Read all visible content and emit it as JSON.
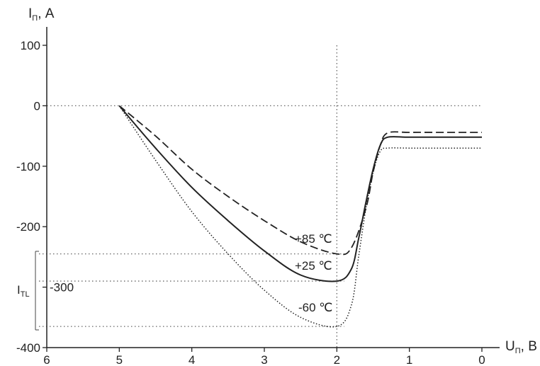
{
  "chart_data": {
    "type": "line",
    "ylabel_main": "I",
    "ylabel_sub": "П",
    "ylabel_unit": ", A",
    "xlabel_main": "U",
    "xlabel_sub": "П",
    "xlabel_unit": ", В",
    "xlim": [
      6,
      0
    ],
    "ylim": [
      -400,
      100
    ],
    "x_ticks": [
      "6",
      "5",
      "4",
      "3",
      "2",
      "1",
      "0"
    ],
    "y_ticks": [
      "100",
      "0",
      "-100",
      "-200",
      "-300",
      "-400"
    ],
    "x_tick_values": [
      6,
      5,
      4,
      3,
      2,
      1,
      0
    ],
    "y_tick_values": [
      100,
      0,
      -100,
      -200,
      -300,
      -400
    ],
    "series": [
      {
        "name": "+85 ℃",
        "style": "dashed",
        "x": [
          5.0,
          4.5,
          4.0,
          3.5,
          3.0,
          2.5,
          2.0,
          1.8,
          1.6,
          1.5,
          1.4,
          1.3,
          1.0,
          0.5,
          0.0
        ],
        "y": [
          0,
          -50,
          -105,
          -150,
          -190,
          -225,
          -245,
          -235,
          -170,
          -110,
          -65,
          -45,
          -44,
          -44,
          -44
        ]
      },
      {
        "name": "+25 ℃",
        "style": "solid",
        "x": [
          5.0,
          4.5,
          4.0,
          3.5,
          3.0,
          2.5,
          2.0,
          1.8,
          1.7,
          1.6,
          1.5,
          1.4,
          1.3,
          1.0,
          0.5,
          0.0
        ],
        "y": [
          0,
          -70,
          -135,
          -190,
          -240,
          -280,
          -290,
          -270,
          -220,
          -160,
          -105,
          -65,
          -52,
          -52,
          -52,
          -52
        ]
      },
      {
        "name": "-60 ℃",
        "style": "dotted",
        "x": [
          5.0,
          4.5,
          4.0,
          3.5,
          3.0,
          2.5,
          2.0,
          1.8,
          1.7,
          1.6,
          1.5,
          1.4,
          1.3,
          1.0,
          0.5,
          0.0
        ],
        "y": [
          0,
          -90,
          -175,
          -245,
          -305,
          -350,
          -365,
          -330,
          -250,
          -170,
          -110,
          -75,
          -70,
          -70,
          -70,
          -70
        ]
      }
    ],
    "reference_lines": {
      "vertical_x": 2,
      "horizontal_y": [
        0,
        -245,
        -290,
        -365
      ]
    },
    "annotations": {
      "t85": "+85 ℃",
      "t25": "+25 ℃",
      "t60": "-60 ℃",
      "itl_main": "I",
      "itl_sub": "TL",
      "itl_range": [
        -245,
        -365
      ]
    },
    "grid": false,
    "legend": "none"
  }
}
